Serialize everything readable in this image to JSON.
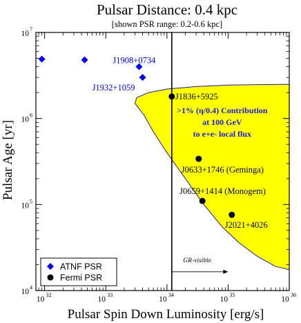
{
  "chart_data": {
    "type": "scatter",
    "title": "Pulsar Distance: 0.4 kpc",
    "subtitle": "[shown PSR range: 0.2-0.6 kpc]",
    "xlabel": "Pulsar Spin Down Luminosity [erg/s]",
    "ylabel": "Pulsar Age [yr]",
    "xscale": "log",
    "yscale": "log",
    "xlim": [
      7.2e+31,
      1e+36
    ],
    "ylim": [
      10000.0,
      10000000.0
    ],
    "x_ticks": [
      {
        "base": "10",
        "exp": "32",
        "value": 1e+32
      },
      {
        "base": "10",
        "exp": "33",
        "value": 1e+33
      },
      {
        "base": "10",
        "exp": "34",
        "value": 1e+34
      },
      {
        "base": "10",
        "exp": "35",
        "value": 1e+35
      },
      {
        "base": "10",
        "exp": "36",
        "value": 1e+36
      }
    ],
    "y_ticks": [
      {
        "base": "10",
        "exp": "4",
        "value": 10000.0
      },
      {
        "base": "10",
        "exp": "5",
        "value": 100000.0
      },
      {
        "base": "10",
        "exp": "6",
        "value": 1000000.0
      },
      {
        "base": "10",
        "exp": "7",
        "value": 10000000.0
      }
    ],
    "grid": false,
    "legend_position": "bottom-left",
    "series": [
      {
        "name": "ATNF PSR",
        "marker": "diamond",
        "color": "#0000ee",
        "points": [
          {
            "x": 9e+31,
            "y": 4900000.0,
            "label": ""
          },
          {
            "x": 4.5e+32,
            "y": 4800000.0,
            "label": ""
          },
          {
            "x": 3.5e+33,
            "y": 4000000.0,
            "label": "J1908+0734"
          },
          {
            "x": 4e+33,
            "y": 3000000.0,
            "label": "J1932+1059"
          }
        ]
      },
      {
        "name": "Fermi PSR",
        "marker": "circle",
        "color": "#000000",
        "points": [
          {
            "x": 1.2e+34,
            "y": 1800000.0,
            "label": "J1836+5925"
          },
          {
            "x": 3.3e+34,
            "y": 340000.0,
            "label": "J0633+1746 (Geminga)"
          },
          {
            "x": 3.8e+34,
            "y": 110000.0,
            "label": "J0659+1414 (Monogem)"
          },
          {
            "x": 1.15e+35,
            "y": 76000.0,
            "label": "J2021+4026"
          }
        ]
      }
    ],
    "region": {
      "color": "#ffff00",
      "edge_color": "#1a1aaa",
      "lines": [
        ">1% (η/0.4) Contribution",
        "at 100 GeV",
        "to e+e- local flux"
      ],
      "boundary": [
        [
          3.2e+33,
          1750000.0
        ],
        [
          5e+33,
          2000000.0
        ],
        [
          1e+34,
          2200000.0
        ],
        [
          3e+34,
          2350000.0
        ],
        [
          1e+35,
          2450000.0
        ],
        [
          1e+36,
          2500000.0
        ],
        [
          1e+36,
          17500.0
        ],
        [
          6e+35,
          19000.0
        ],
        [
          3e+35,
          25000.0
        ],
        [
          1.5e+35,
          36000.0
        ],
        [
          8e+34,
          55000.0
        ],
        [
          4e+34,
          100000.0
        ],
        [
          2e+34,
          200000.0
        ],
        [
          1e+34,
          400000.0
        ],
        [
          6e+33,
          700000.0
        ],
        [
          4.2e+33,
          1100000.0
        ],
        [
          3e+33,
          1500000.0
        ]
      ]
    },
    "vline": {
      "x": 1.2e+34,
      "color": "#000000"
    },
    "annotation": {
      "text": "GR-visible",
      "x_from": 1.2e+34,
      "x_to": 1e+35,
      "y": 13000.0
    }
  }
}
